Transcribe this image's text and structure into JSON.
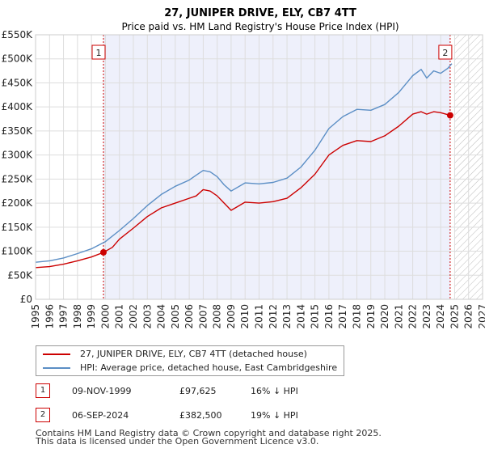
{
  "chart_data": {
    "type": "line",
    "title": "27, JUNIPER DRIVE, ELY, CB7 4TT",
    "subtitle": "Price paid vs. HM Land Registry's House Price Index (HPI)",
    "xlabel": "",
    "ylabel": "",
    "xlim": [
      1995,
      2027
    ],
    "ylim": [
      0,
      550000
    ],
    "x_ticks": [
      1995,
      1996,
      1997,
      1998,
      1999,
      2000,
      2001,
      2002,
      2003,
      2004,
      2005,
      2006,
      2007,
      2008,
      2009,
      2010,
      2011,
      2012,
      2013,
      2014,
      2015,
      2016,
      2017,
      2018,
      2019,
      2020,
      2021,
      2022,
      2023,
      2024,
      2025,
      2026,
      2027
    ],
    "y_ticks": [
      0,
      50000,
      100000,
      150000,
      200000,
      250000,
      300000,
      350000,
      400000,
      450000,
      500000,
      550000
    ],
    "y_tick_labels": [
      "£0",
      "£50K",
      "£100K",
      "£150K",
      "£200K",
      "£250K",
      "£300K",
      "£350K",
      "£400K",
      "£450K",
      "£500K",
      "£550K"
    ],
    "grid": true,
    "series": [
      {
        "name": "27, JUNIPER DRIVE, ELY, CB7 4TT (detached house)",
        "color": "#cc0000",
        "x": [
          1995,
          1996,
          1997,
          1998,
          1999,
          1999.86,
          2000.5,
          2001,
          2002,
          2003,
          2004,
          2005,
          2006,
          2006.5,
          2007,
          2007.5,
          2008,
          2008.5,
          2009,
          2009.3,
          2010,
          2011,
          2012,
          2013,
          2014,
          2015,
          2016,
          2017,
          2018,
          2019,
          2020,
          2021,
          2022,
          2022.6,
          2023,
          2023.5,
          2024,
          2024.68
        ],
        "y": [
          66000,
          68000,
          73000,
          80000,
          88000,
          97625,
          108000,
          125000,
          148000,
          172000,
          190000,
          200000,
          210000,
          215000,
          228000,
          225000,
          215000,
          200000,
          185000,
          190000,
          202000,
          200000,
          203000,
          210000,
          232000,
          260000,
          300000,
          320000,
          330000,
          328000,
          340000,
          360000,
          385000,
          390000,
          385000,
          390000,
          388000,
          382500
        ]
      },
      {
        "name": "HPI: Average price, detached house, East Cambridgeshire",
        "color": "#5b8ec5",
        "x": [
          1995,
          1996,
          1997,
          1998,
          1999,
          2000,
          2001,
          2002,
          2003,
          2004,
          2005,
          2006,
          2006.5,
          2007,
          2007.5,
          2008,
          2008.5,
          2009,
          2010,
          2011,
          2012,
          2013,
          2014,
          2015,
          2016,
          2017,
          2018,
          2019,
          2020,
          2021,
          2022,
          2022.6,
          2023,
          2023.5,
          2024,
          2024.5,
          2024.8
        ],
        "y": [
          77000,
          80000,
          86000,
          95000,
          105000,
          120000,
          143000,
          168000,
          195000,
          218000,
          235000,
          248000,
          258000,
          268000,
          265000,
          255000,
          238000,
          225000,
          242000,
          240000,
          243000,
          252000,
          275000,
          310000,
          355000,
          380000,
          395000,
          393000,
          405000,
          430000,
          465000,
          478000,
          460000,
          475000,
          470000,
          480000,
          490000
        ]
      }
    ],
    "sales": [
      {
        "num": "1",
        "x": 1999.86,
        "y": 97625
      },
      {
        "num": "2",
        "x": 2024.68,
        "y": 382500
      }
    ],
    "hatch_from": 2025
  },
  "legend": {
    "item1": "27, JUNIPER DRIVE, ELY, CB7 4TT (detached house)",
    "item2": "HPI: Average price, detached house, East Cambridgeshire"
  },
  "table": {
    "rows": [
      {
        "num": "1",
        "date": "09-NOV-1999",
        "price": "£97,625",
        "hpi": "16% ↓ HPI"
      },
      {
        "num": "2",
        "date": "06-SEP-2024",
        "price": "£382,500",
        "hpi": "19% ↓ HPI"
      }
    ]
  },
  "footer": {
    "line1": "Contains HM Land Registry data © Crown copyright and database right 2025.",
    "line2": "This data is licensed under the Open Government Licence v3.0."
  },
  "colors": {
    "red": "#cc0000",
    "blue": "#5b8ec5",
    "shade": "#eef0fb",
    "grid": "#dddddd"
  }
}
